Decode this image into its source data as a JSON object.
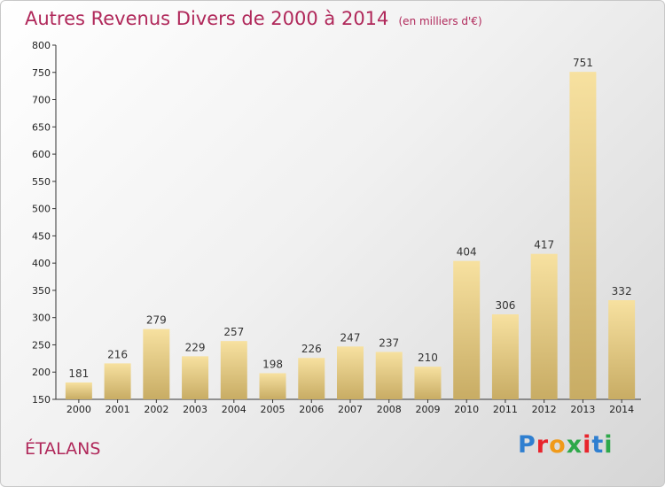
{
  "chart_data": {
    "type": "bar",
    "title": "Autres Revenus Divers de 2000 à 2014",
    "subtitle": "(en milliers d'€)",
    "categories": [
      "2000",
      "2001",
      "2002",
      "2003",
      "2004",
      "2005",
      "2006",
      "2007",
      "2008",
      "2009",
      "2010",
      "2011",
      "2012",
      "2013",
      "2014"
    ],
    "values": [
      181,
      216,
      279,
      229,
      257,
      198,
      226,
      247,
      237,
      210,
      404,
      306,
      417,
      751,
      332
    ],
    "ylim": [
      150,
      800
    ],
    "yticks": [
      150,
      200,
      250,
      300,
      350,
      400,
      450,
      500,
      550,
      600,
      650,
      700,
      750,
      800
    ],
    "grid": false,
    "legend": "none",
    "xlabel": "",
    "ylabel": ""
  },
  "place_name": "ÉTALANS",
  "logo_text": "Proxiti",
  "colors": {
    "title": "#b0285a",
    "bar_light": "#f7e1a0",
    "bar_dark": "#c8ac64"
  }
}
